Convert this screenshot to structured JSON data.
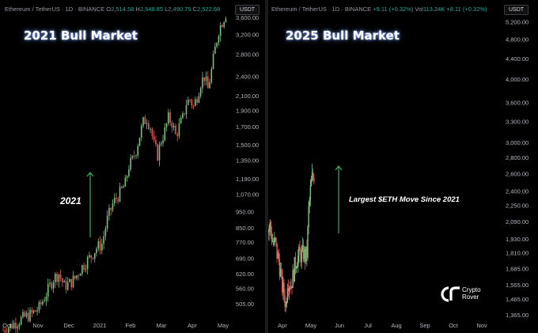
{
  "left_panel": {
    "header": {
      "symbol": "Ethereum / TetherUS · 1D · BINANCE",
      "open_label": "O",
      "open": "2,514.58",
      "high_label": "H",
      "high": "2,548.85",
      "low_label": "L",
      "low": "2,490.75",
      "close_label": "C",
      "close": "2,522.68"
    },
    "title": "2021 Bull Market",
    "currency_button": "USDT",
    "annotation": "2021"
  },
  "right_panel": {
    "header": {
      "symbol": "Ethereum / TetherUS · 1D · BINANCE",
      "change": "+9.11 (+0.32%)",
      "vol_label": "Vol",
      "vol": "113.24K",
      "vol_change": "+8.11 (+0.32%)"
    },
    "title": "2025 Bull Market",
    "currency_button": "USDT",
    "annotation": "Largest $ETH Move Since 2021"
  },
  "logo": {
    "line1": "Crypto",
    "line2": "Rover"
  },
  "colors": {
    "up": "#26a69a",
    "down": "#ef5350",
    "up_candle": "#7fbf7f",
    "down_candle": "#e05a5a",
    "arrow": "#3ea95a",
    "grid": "#1a1a1a"
  },
  "chart_data": [
    {
      "type": "candlestick",
      "title": "2021 Bull Market",
      "x_ticks": [
        "Oct",
        "Nov",
        "Dec",
        "2021",
        "Feb",
        "Mar",
        "Apr",
        "May"
      ],
      "y_scale": "log",
      "y_ticks": [
        505,
        560,
        620,
        690,
        770,
        850,
        950,
        1070,
        1190,
        1350,
        1500,
        1700,
        1900,
        2100,
        2400,
        2800,
        3200,
        3600
      ],
      "y_tick_labels": [
        "505.00",
        "560.00",
        "620.00",
        "690.00",
        "770.00",
        "850.00",
        "950.00",
        "1,070.00",
        "1,190.00",
        "1,350.00",
        "1,500.00",
        "1,700.00",
        "1,900.00",
        "2,100.00",
        "2,400.00",
        "2,800.00",
        "3,200.00",
        "3,600.00"
      ],
      "ylim": [
        450,
        3800
      ],
      "close_path": [
        [
          0,
          420
        ],
        [
          6,
          440
        ],
        [
          12,
          460
        ],
        [
          16,
          470
        ],
        [
          20,
          490
        ],
        [
          24,
          540
        ],
        [
          28,
          600
        ],
        [
          31,
          620
        ],
        [
          34,
          570
        ],
        [
          37,
          580
        ],
        [
          40,
          600
        ],
        [
          43,
          640
        ],
        [
          46,
          670
        ],
        [
          49,
          700
        ],
        [
          52,
          740
        ],
        [
          55,
          760
        ],
        [
          58,
          900
        ],
        [
          61,
          1000
        ],
        [
          63,
          1040
        ],
        [
          66,
          1100
        ],
        [
          68,
          1150
        ],
        [
          70,
          1300
        ],
        [
          72,
          1350
        ],
        [
          74,
          1450
        ],
        [
          76,
          1600
        ],
        [
          78,
          1750
        ],
        [
          80,
          1800
        ],
        [
          82,
          1700
        ],
        [
          84,
          1500
        ],
        [
          86,
          1400
        ],
        [
          88,
          1550
        ],
        [
          90,
          1650
        ],
        [
          92,
          1800
        ],
        [
          94,
          1750
        ],
        [
          96,
          1600
        ],
        [
          98,
          1700
        ],
        [
          100,
          1800
        ],
        [
          102,
          2000
        ],
        [
          104,
          2050
        ],
        [
          106,
          1950
        ],
        [
          108,
          2100
        ],
        [
          110,
          2300
        ],
        [
          112,
          2400
        ],
        [
          114,
          2200
        ],
        [
          116,
          2500
        ],
        [
          118,
          2900
        ],
        [
          120,
          3300
        ],
        [
          122,
          3500
        ],
        [
          124,
          3700
        ]
      ],
      "x_domain": [
        0,
        126
      ],
      "annotation": "2021"
    },
    {
      "type": "candlestick",
      "title": "2025 Bull Market",
      "x_ticks": [
        "Apr",
        "May",
        "Jun",
        "Jul",
        "Aug",
        "Sep",
        "Oct",
        "Nov"
      ],
      "y_scale": "log",
      "y_ticks": [
        1365,
        1465,
        1565,
        1685,
        1810,
        1930,
        2090,
        2250,
        2400,
        2600,
        2800,
        3000,
        3300,
        3600,
        4000,
        4400,
        4800,
        5200
      ],
      "y_tick_labels": [
        "1,365.00",
        "1,465.00",
        "1,565.00",
        "1,685.00",
        "1,810.00",
        "1,930.00",
        "2,090.00",
        "2,250.00",
        "2,400.00",
        "2,600.00",
        "2,800.00",
        "3,000.00",
        "3,300.00",
        "3,600.00",
        "4,000.00",
        "4,400.00",
        "4,800.00",
        "5,200.00"
      ],
      "ylim": [
        1330,
        5500
      ],
      "close_path": [
        [
          0,
          2000
        ],
        [
          2,
          2050
        ],
        [
          4,
          1950
        ],
        [
          6,
          1880
        ],
        [
          8,
          1900
        ],
        [
          10,
          1800
        ],
        [
          12,
          1750
        ],
        [
          14,
          1650
        ],
        [
          16,
          1550
        ],
        [
          18,
          1500
        ],
        [
          20,
          1420
        ],
        [
          22,
          1600
        ],
        [
          24,
          1580
        ],
        [
          26,
          1570
        ],
        [
          28,
          1620
        ],
        [
          30,
          1700
        ],
        [
          32,
          1750
        ],
        [
          34,
          1780
        ],
        [
          36,
          1800
        ],
        [
          38,
          1790
        ],
        [
          40,
          1810
        ],
        [
          42,
          1780
        ],
        [
          44,
          1800
        ],
        [
          46,
          2200
        ],
        [
          48,
          2400
        ],
        [
          50,
          2550
        ],
        [
          52,
          2580
        ]
      ],
      "x_domain": [
        0,
        270
      ],
      "annotation": "Largest $ETH Move Since 2021"
    }
  ]
}
